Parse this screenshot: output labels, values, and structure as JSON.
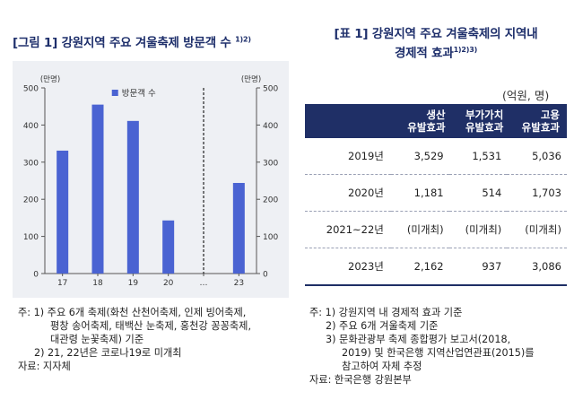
{
  "figure": {
    "title": "[그림 1] 강원지역 주요 겨울축제 방문객 수",
    "title_sup": "1)2)"
  },
  "table_section": {
    "title_line1": "[표 1] 강원지역 주요 겨울축제의 지역내",
    "title_line2": "경제적 효과",
    "title_sup": "1)2)3)",
    "unit": "(억원, 명)"
  },
  "chart_data": {
    "type": "bar",
    "categories": [
      "17",
      "18",
      "19",
      "20",
      "…",
      "23"
    ],
    "series": [
      {
        "name": "방문객 수",
        "values": [
          331,
          455,
          411,
          143,
          null,
          244
        ]
      }
    ],
    "ylabel_left": "(만명)",
    "ylabel_right": "(만명)",
    "ylim": [
      0,
      500
    ],
    "yticks": [
      0,
      100,
      200,
      300,
      400,
      500
    ],
    "legend": "top-center",
    "bar_color": "#4a63d2",
    "divider_after_category": "20"
  },
  "table": {
    "headers": [
      {
        "line1": "",
        "line2": ""
      },
      {
        "line1": "생산",
        "line2": "유발효과"
      },
      {
        "line1": "부가가치",
        "line2": "유발효과"
      },
      {
        "line1": "고용",
        "line2": "유발효과"
      }
    ],
    "rows": [
      {
        "year": "2019년",
        "prod": "3,529",
        "value": "1,531",
        "emp": "5,036"
      },
      {
        "year": "2020년",
        "prod": "1,181",
        "value": "514",
        "emp": "1,703"
      },
      {
        "year": "2021~22년",
        "prod": "(미개최)",
        "value": "(미개최)",
        "emp": "(미개최)"
      },
      {
        "year": "2023년",
        "prod": "2,162",
        "value": "937",
        "emp": "3,086"
      }
    ]
  },
  "left_notes": [
    "주: 1) 주요 6개 축제(화천 산천어축제, 인제 빙어축제,",
    "평창 송어축제, 태백산 눈축제, 홍천강 꽁꽁축제,",
    "대관령 눈꽃축제) 기준",
    "2) 21, 22년은 코로나19로 미개최",
    "자료: 지자체"
  ],
  "right_notes": [
    "주: 1) 강원지역 내 경제적 효과 기준",
    "2) 주요 6개 겨울축제 기준",
    "3) 문화관광부 축제 종합평가 보고서(2018,",
    "2019) 및 한국은행 지역산업연관표(2015)를",
    "참고하여 자체 추정",
    "자료: 한국은행 강원본부"
  ]
}
